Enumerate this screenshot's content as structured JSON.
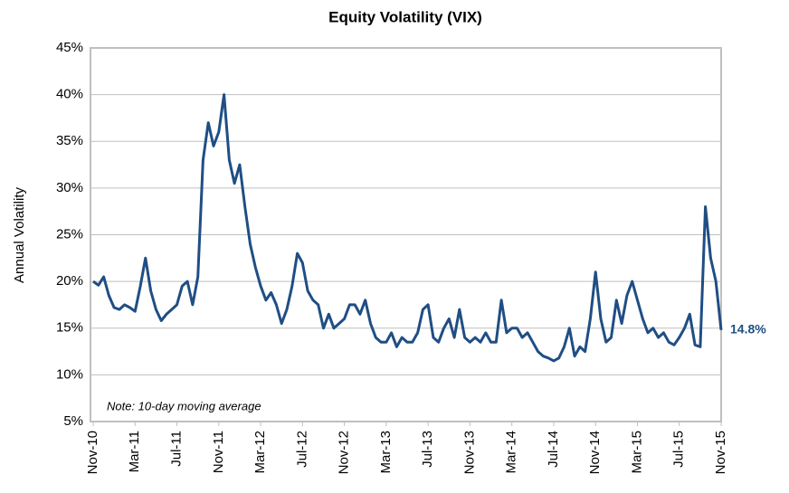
{
  "chart_data": {
    "type": "line",
    "title": "Equity Volatility (VIX)",
    "y_label": "Annual Volatility",
    "note": "Note: 10-day moving average",
    "color": "#1f4e84",
    "grid": true,
    "categories": [
      "Nov-10",
      null,
      null,
      null,
      null,
      null,
      null,
      null,
      "Mar-11",
      null,
      null,
      null,
      null,
      null,
      null,
      null,
      "Jul-11",
      null,
      null,
      null,
      null,
      null,
      null,
      null,
      "Nov-11",
      null,
      null,
      null,
      null,
      null,
      null,
      null,
      "Mar-12",
      null,
      null,
      null,
      null,
      null,
      null,
      null,
      "Jul-12",
      null,
      null,
      null,
      null,
      null,
      null,
      null,
      "Nov-12",
      null,
      null,
      null,
      null,
      null,
      null,
      null,
      "Mar-13",
      null,
      null,
      null,
      null,
      null,
      null,
      null,
      "Jul-13",
      null,
      null,
      null,
      null,
      null,
      null,
      null,
      "Nov-13",
      null,
      null,
      null,
      null,
      null,
      null,
      null,
      "Mar-14",
      null,
      null,
      null,
      null,
      null,
      null,
      null,
      "Jul-14",
      null,
      null,
      null,
      null,
      null,
      null,
      null,
      "Nov-14",
      null,
      null,
      null,
      null,
      null,
      null,
      null,
      "Mar-15",
      null,
      null,
      null,
      null,
      null,
      null,
      null,
      "Jul-15",
      null,
      null,
      null,
      null,
      null,
      null,
      null,
      "Nov-15"
    ],
    "values": [
      20,
      19.6,
      20.5,
      18.5,
      17.2,
      17,
      17.5,
      17.2,
      16.8,
      19.5,
      22.5,
      19,
      17,
      15.8,
      16.5,
      17,
      17.5,
      19.5,
      20,
      17.5,
      20.5,
      33,
      37,
      34.5,
      36,
      40,
      33,
      30.5,
      32.5,
      28,
      24,
      21.5,
      19.5,
      18,
      18.8,
      17.5,
      15.5,
      17,
      19.5,
      23,
      22,
      19,
      18,
      17.5,
      15,
      16.5,
      15,
      15.5,
      16,
      17.5,
      17.5,
      16.5,
      18,
      15.5,
      14,
      13.5,
      13.5,
      14.5,
      13,
      14,
      13.5,
      13.5,
      14.5,
      17,
      17.5,
      14,
      13.5,
      15,
      16,
      14,
      17,
      14,
      13.5,
      14,
      13.5,
      14.5,
      13.5,
      13.5,
      18,
      14.5,
      15,
      15,
      14,
      14.5,
      13.5,
      12.5,
      12,
      11.8,
      11.5,
      11.8,
      13,
      15,
      12,
      13,
      12.5,
      16,
      21,
      16,
      13.5,
      14,
      18,
      15.5,
      18.5,
      20,
      18,
      16,
      14.5,
      15,
      14,
      14.5,
      13.5,
      13.2,
      14,
      15,
      16.5,
      13.2,
      13,
      28,
      22.5,
      20,
      14.8
    ],
    "last_value_label": "14.8%",
    "ylim": [
      5,
      45
    ],
    "yticks": [
      {
        "value": 5,
        "label": "5%"
      },
      {
        "value": 10,
        "label": "10%"
      },
      {
        "value": 15,
        "label": "15%"
      },
      {
        "value": 20,
        "label": "20%"
      },
      {
        "value": 25,
        "label": "25%"
      },
      {
        "value": 30,
        "label": "30%"
      },
      {
        "value": 35,
        "label": "35%"
      },
      {
        "value": 40,
        "label": "40%"
      },
      {
        "value": 45,
        "label": "45%"
      }
    ]
  }
}
